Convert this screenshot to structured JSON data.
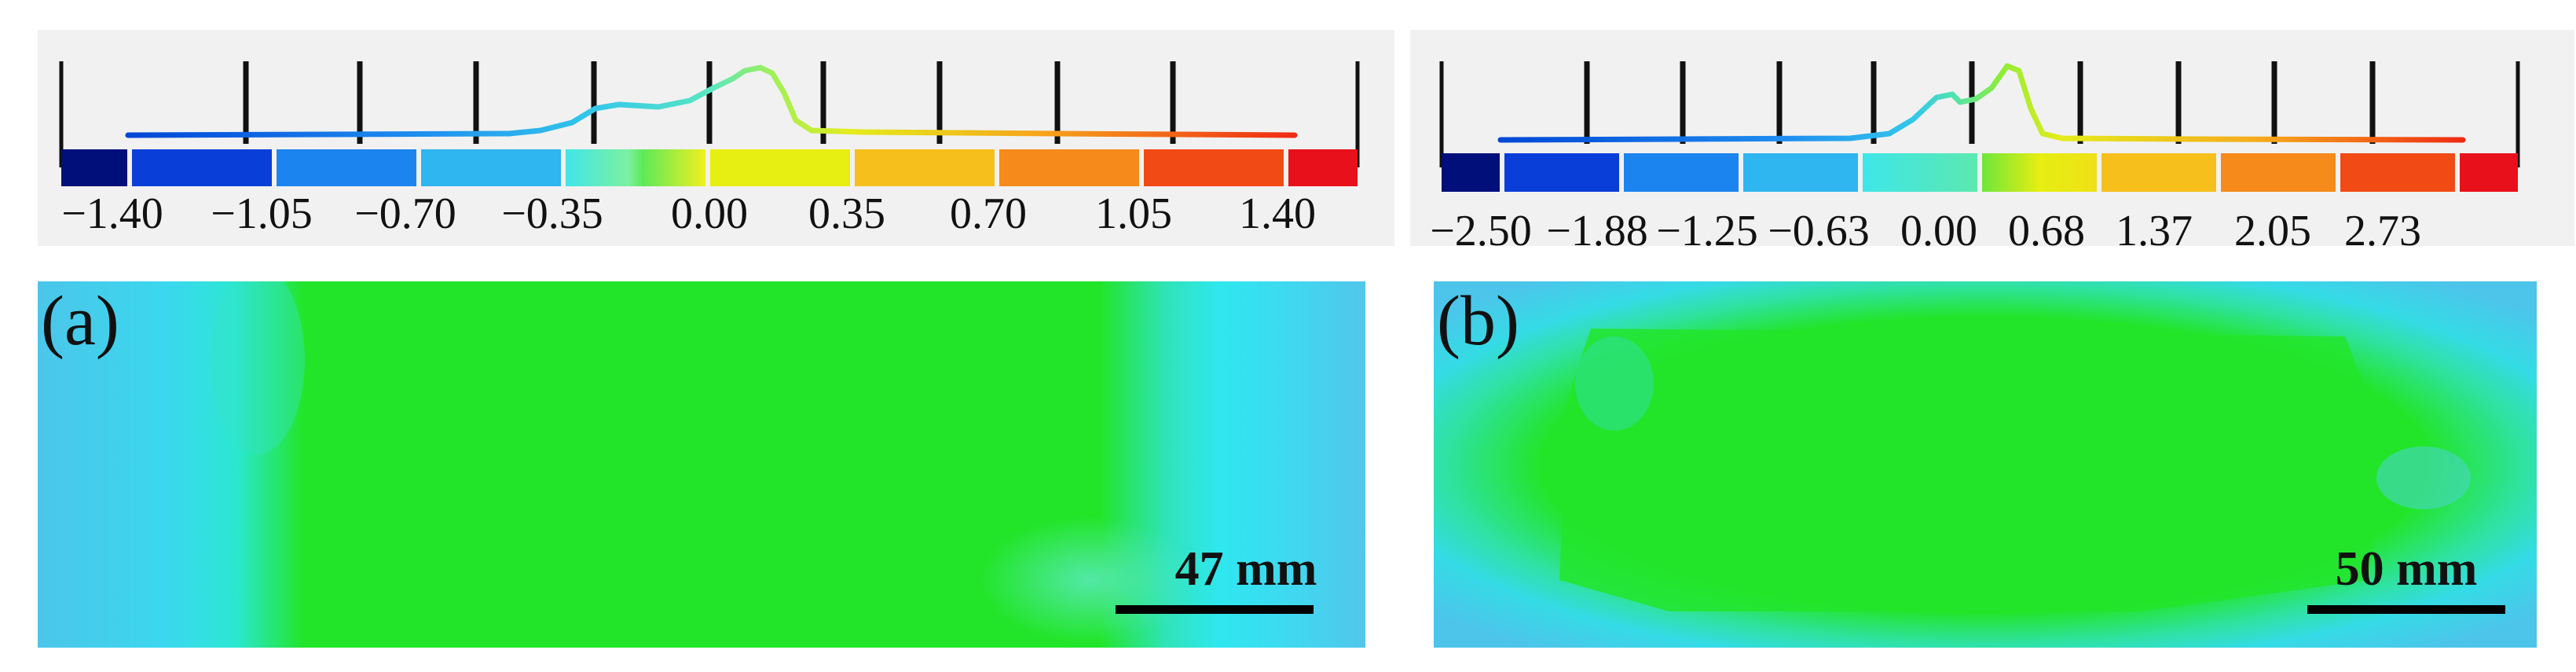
{
  "panels": {
    "a": {
      "label": "(a)",
      "legend_ticks": [
        "−1.40",
        "−1.05",
        "−0.70",
        "−0.35",
        "0.00",
        "0.35",
        "0.70",
        "1.05",
        "1.40"
      ],
      "scale_bar_label": "47 mm"
    },
    "b": {
      "label": "(b)",
      "legend_ticks": [
        "−2.50",
        "−1.88",
        "−1.25",
        "−0.63",
        "0.00",
        "0.68",
        "1.37",
        "2.05",
        "2.73"
      ],
      "scale_bar_label": "50 mm"
    }
  },
  "colors": {
    "legend_segments": [
      "#000f7a",
      "#0a3ed8",
      "#1b84ee",
      "#2fb5ef",
      "#49dbe9",
      "#e6ee12",
      "#f6bf1c",
      "#f68a1a",
      "#f24a14",
      "#e8101a"
    ],
    "map_background": "#1fe51f",
    "map_edge": "#39d7ec"
  }
}
